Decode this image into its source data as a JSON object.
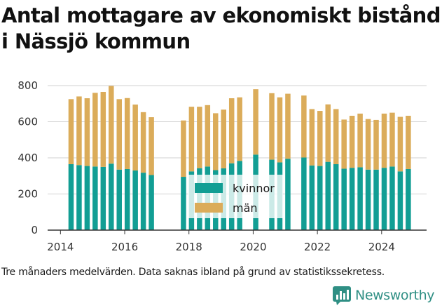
{
  "title": "Antal mottagare av ekonomiskt bistånd i Nässjö kommun",
  "note": "Tre månaders medelvärden. Data saknas ibland på grund av statistikssekretess.",
  "brand": {
    "name": "Newsworthy",
    "icon": "newsworthy-bar-chart-logo-icon"
  },
  "colors": {
    "kvinnor": "#129e94",
    "man": "#dbac5a",
    "grid": "#d2d2d2",
    "axis": "#333333",
    "brand": "#2f8f84"
  },
  "chart_data": {
    "type": "bar",
    "stacked": true,
    "title": "Antal mottagare av ekonomiskt bistånd i Nässjö kommun",
    "xlabel": "",
    "ylabel": "",
    "ylim": [
      0,
      800
    ],
    "yticks": [
      0,
      200,
      400,
      600,
      800
    ],
    "xticks": [
      2014,
      2016,
      2018,
      2020,
      2022,
      2024
    ],
    "xlim": [
      2013.6,
      2025.4
    ],
    "grid": "horizontal",
    "legend": {
      "position": "center-left",
      "entries": [
        "kvinnor",
        "män"
      ]
    },
    "x": [
      2014.33,
      2014.58,
      2014.83,
      2015.08,
      2015.33,
      2015.58,
      2015.83,
      2016.08,
      2016.33,
      2016.58,
      2016.83,
      2017.83,
      2018.08,
      2018.33,
      2018.58,
      2018.83,
      2019.08,
      2019.33,
      2019.58,
      2020.08,
      2020.58,
      2020.83,
      2021.08,
      2021.58,
      2021.83,
      2022.08,
      2022.33,
      2022.58,
      2022.83,
      2023.08,
      2023.33,
      2023.58,
      2023.83,
      2024.08,
      2024.33,
      2024.58,
      2024.83
    ],
    "series": [
      {
        "name": "kvinnor",
        "values": [
          365,
          360,
          355,
          352,
          350,
          368,
          335,
          338,
          330,
          318,
          305,
          295,
          325,
          343,
          352,
          332,
          342,
          370,
          383,
          418,
          390,
          375,
          395,
          402,
          358,
          355,
          378,
          365,
          340,
          345,
          348,
          335,
          335,
          345,
          352,
          325,
          338
        ]
      },
      {
        "name": "män",
        "values": [
          360,
          380,
          375,
          408,
          415,
          430,
          390,
          393,
          365,
          335,
          320,
          312,
          358,
          340,
          340,
          315,
          325,
          360,
          352,
          362,
          368,
          360,
          360,
          343,
          312,
          305,
          318,
          305,
          272,
          288,
          297,
          280,
          275,
          300,
          298,
          302,
          295
        ]
      }
    ]
  }
}
